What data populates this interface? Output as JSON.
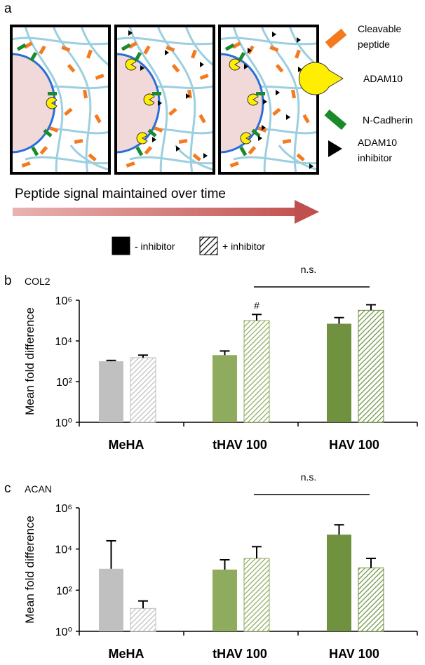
{
  "schematic": {
    "panel_label": "a",
    "items": [
      {
        "lines": [
          "Cleavable",
          "peptide"
        ]
      },
      {
        "lines": [
          "ADAM10"
        ]
      },
      {
        "lines": [
          "N-Cadherin"
        ]
      },
      {
        "lines": [
          "ADAM10",
          "inhibitor"
        ]
      }
    ],
    "arrow_text": "Peptide signal maintained over time"
  },
  "legend": [
    {
      "name": "- inhibitor",
      "hatched": false
    },
    {
      "name": "+ inhibitor",
      "hatched": true
    }
  ],
  "chart_data": [
    {
      "type": "bar",
      "panel_label": "b",
      "subtitle": "COL2",
      "ylabel": "Mean fold difference",
      "log_scale": true,
      "ylim": [
        1,
        1000000
      ],
      "yticks": [
        {
          "value": 1,
          "label": "10⁰"
        },
        {
          "value": 100,
          "label": "10²"
        },
        {
          "value": 10000,
          "label": "10⁴"
        },
        {
          "value": 1000000,
          "label": "10⁶"
        }
      ],
      "categories": [
        "MeHA",
        "tHAV 100",
        "HAV 100"
      ],
      "category_colors": [
        "#c0c0c0",
        "#8eab5e",
        "#6f9140"
      ],
      "category_label_colors": [
        "#9a9a9a",
        "#7a9a3a",
        "#4e6b28"
      ],
      "series": [
        {
          "hatched": false,
          "values": [
            1000,
            2000,
            70000
          ],
          "errors": [
            100,
            1200,
            70000
          ]
        },
        {
          "hatched": true,
          "values": [
            1500,
            100000,
            320000
          ],
          "errors": [
            500,
            100000,
            280000
          ]
        }
      ],
      "annotations": [
        "n.s.",
        "#"
      ]
    },
    {
      "type": "bar",
      "panel_label": "c",
      "subtitle": "ACAN",
      "ylabel": "Mean fold difference",
      "log_scale": true,
      "ylim": [
        1,
        1000000
      ],
      "yticks": [
        {
          "value": 1,
          "label": "10⁰"
        },
        {
          "value": 100,
          "label": "10²"
        },
        {
          "value": 10000,
          "label": "10⁴"
        },
        {
          "value": 1000000,
          "label": "10⁶"
        }
      ],
      "categories": [
        "MeHA",
        "tHAV 100",
        "HAV 100"
      ],
      "category_colors": [
        "#c0c0c0",
        "#8eab5e",
        "#6f9140"
      ],
      "category_label_colors": [
        "#9a9a9a",
        "#7a9a3a",
        "#4e6b28"
      ],
      "series": [
        {
          "hatched": false,
          "values": [
            1100,
            1000,
            50000
          ],
          "errors": [
            24000,
            2000,
            100000
          ]
        },
        {
          "hatched": true,
          "values": [
            13,
            3500,
            1200
          ],
          "errors": [
            17,
            9500,
            2300
          ]
        }
      ],
      "annotations": [
        "n.s."
      ]
    }
  ]
}
